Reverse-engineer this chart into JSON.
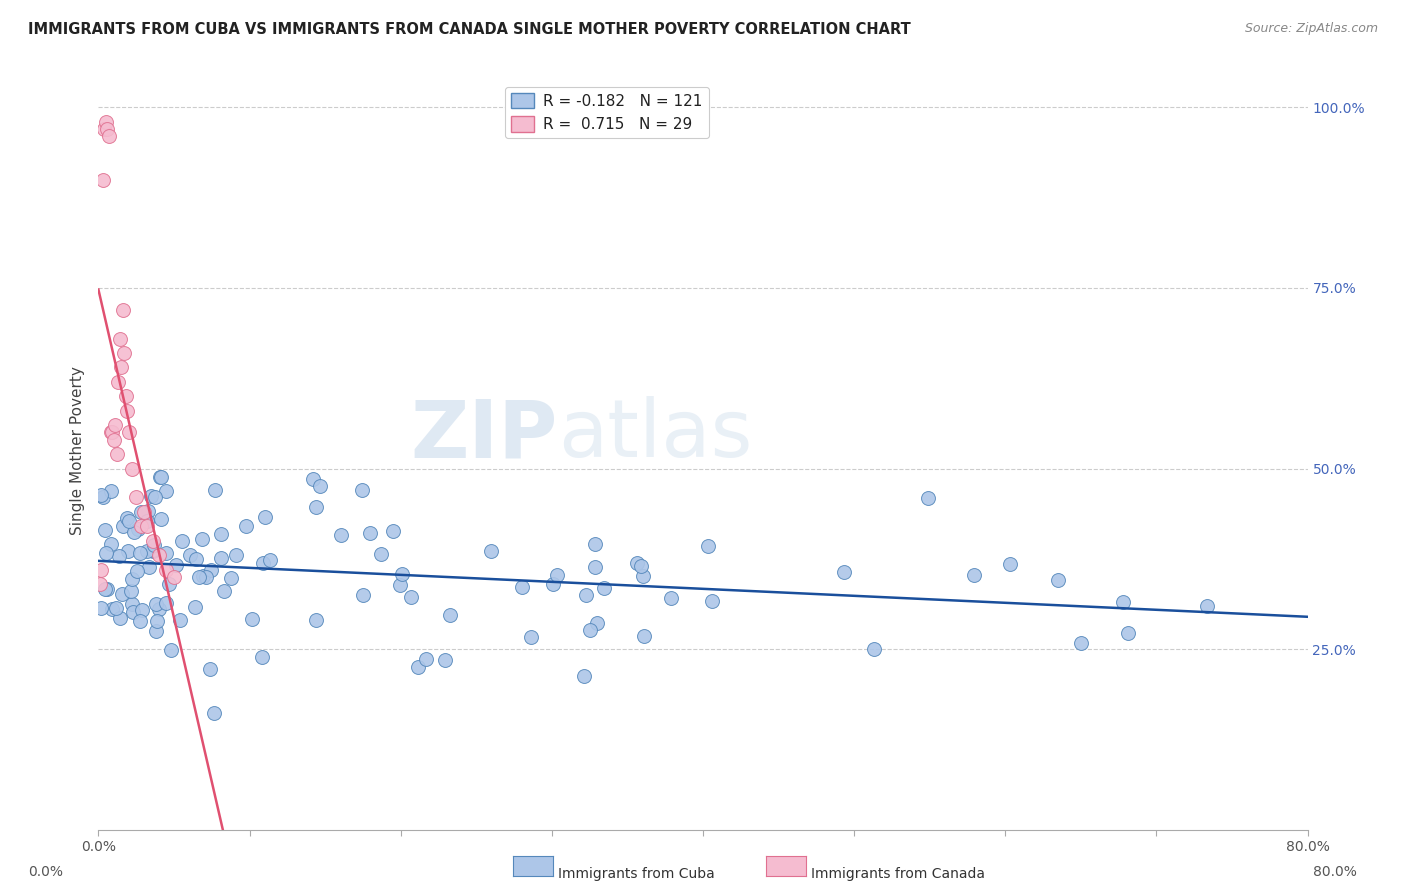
{
  "title": "IMMIGRANTS FROM CUBA VS IMMIGRANTS FROM CANADA SINGLE MOTHER POVERTY CORRELATION CHART",
  "source": "Source: ZipAtlas.com",
  "ylabel": "Single Mother Poverty",
  "right_yticks": [
    0.25,
    0.5,
    0.75,
    1.0
  ],
  "xmin": 0.0,
  "xmax": 0.8,
  "ymin": 0.0,
  "ymax": 1.05,
  "cuba_color": "#adc6e8",
  "canada_color": "#f5bcd0",
  "cuba_edge_color": "#5588bb",
  "canada_edge_color": "#e07090",
  "trend_cuba_color": "#1a4f9c",
  "trend_canada_color": "#e05070",
  "R_cuba": -0.182,
  "N_cuba": 121,
  "R_canada": 0.715,
  "N_canada": 29,
  "watermark_zip": "ZIP",
  "watermark_atlas": "atlas",
  "background_color": "#ffffff",
  "grid_color": "#cccccc",
  "title_color": "#222222",
  "right_label_color": "#4466bb",
  "marker_size": 100
}
